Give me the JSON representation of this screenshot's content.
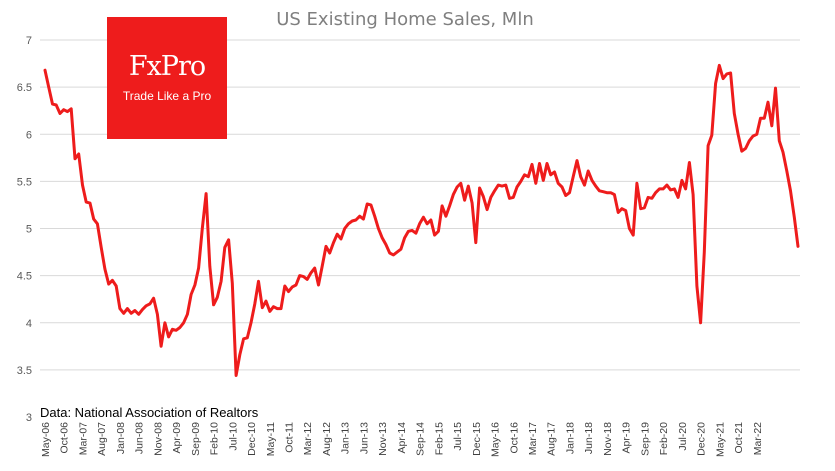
{
  "colors": {
    "line": "#ee1c1c",
    "logo_bg": "#ee1c1c",
    "grid": "#d9d9d9",
    "title": "#7f7f7f"
  },
  "logo": {
    "name": "FxPro",
    "tagline": "Trade Like a Pro"
  },
  "source_note": "Data: National Association of Realtors",
  "chart_data": {
    "type": "line",
    "title": "US Existing Home Sales, Mln",
    "xlabel": "",
    "ylabel": "",
    "ylim": [
      3,
      7
    ],
    "yticks": [
      "3",
      "3.5",
      "4",
      "4.5",
      "5",
      "5.5",
      "6",
      "6.5",
      "7"
    ],
    "grid": true,
    "x_tick_labels": [
      "May-06",
      "Oct-06",
      "Mar-07",
      "Aug-07",
      "Jan-08",
      "Jun-08",
      "Nov-08",
      "Apr-09",
      "Sep-09",
      "Feb-10",
      "Jul-10",
      "Dec-10",
      "May-11",
      "Oct-11",
      "Mar-12",
      "Aug-12",
      "Jan-13",
      "Jun-13",
      "Nov-13",
      "Apr-14",
      "Sep-14",
      "Feb-15",
      "Jul-15",
      "Dec-15",
      "May-16",
      "Oct-16",
      "Mar-17",
      "Aug-17",
      "Jan-18",
      "Jun-18",
      "Nov-18",
      "Apr-19",
      "Sep-19",
      "Feb-20",
      "Jul-20",
      "Dec-20",
      "May-21",
      "Oct-21",
      "Mar-22"
    ],
    "series": [
      {
        "start": "May-06",
        "frequency": "monthly",
        "values": [
          6.68,
          6.5,
          6.32,
          6.31,
          6.22,
          6.26,
          6.24,
          6.27,
          5.74,
          5.79,
          5.46,
          5.28,
          5.27,
          5.1,
          5.05,
          4.8,
          4.57,
          4.41,
          4.45,
          4.39,
          4.15,
          4.1,
          4.15,
          4.1,
          4.13,
          4.09,
          4.14,
          4.18,
          4.2,
          4.26,
          4.09,
          3.75,
          4.0,
          3.85,
          3.93,
          3.92,
          3.95,
          4.0,
          4.09,
          4.3,
          4.4,
          4.58,
          5.0,
          5.37,
          4.6,
          4.19,
          4.27,
          4.44,
          4.8,
          4.88,
          4.42,
          3.44,
          3.66,
          3.83,
          3.84,
          4.0,
          4.2,
          4.44,
          4.16,
          4.23,
          4.12,
          4.17,
          4.15,
          4.15,
          4.39,
          4.33,
          4.38,
          4.4,
          4.5,
          4.49,
          4.46,
          4.53,
          4.58,
          4.4,
          4.6,
          4.81,
          4.74,
          4.85,
          4.94,
          4.89,
          5.0,
          5.05,
          5.08,
          5.09,
          5.13,
          5.1,
          5.26,
          5.25,
          5.13,
          5.0,
          4.9,
          4.83,
          4.74,
          4.72,
          4.75,
          4.78,
          4.9,
          4.97,
          4.98,
          4.95,
          5.05,
          5.12,
          5.05,
          5.09,
          4.93,
          4.97,
          5.24,
          5.13,
          5.24,
          5.36,
          5.44,
          5.48,
          5.3,
          5.45,
          5.27,
          4.85,
          5.43,
          5.34,
          5.2,
          5.33,
          5.4,
          5.46,
          5.45,
          5.46,
          5.32,
          5.33,
          5.44,
          5.5,
          5.57,
          5.55,
          5.68,
          5.48,
          5.69,
          5.51,
          5.69,
          5.57,
          5.6,
          5.48,
          5.44,
          5.35,
          5.38,
          5.55,
          5.72,
          5.55,
          5.46,
          5.61,
          5.51,
          5.45,
          5.4,
          5.39,
          5.38,
          5.38,
          5.36,
          5.17,
          5.21,
          5.19,
          5.0,
          4.93,
          5.48,
          5.21,
          5.22,
          5.33,
          5.32,
          5.38,
          5.42,
          5.42,
          5.46,
          5.41,
          5.42,
          5.33,
          5.51,
          5.42,
          5.7,
          5.36,
          4.39,
          4.0,
          4.75,
          5.88,
          5.99,
          6.54,
          6.73,
          6.59,
          6.64,
          6.65,
          6.22,
          6.0,
          5.82,
          5.85,
          5.93,
          5.98,
          6.0,
          6.17,
          6.17,
          6.34,
          6.09,
          6.49,
          5.93,
          5.81,
          5.61,
          5.4,
          5.12,
          4.81
        ]
      }
    ]
  }
}
